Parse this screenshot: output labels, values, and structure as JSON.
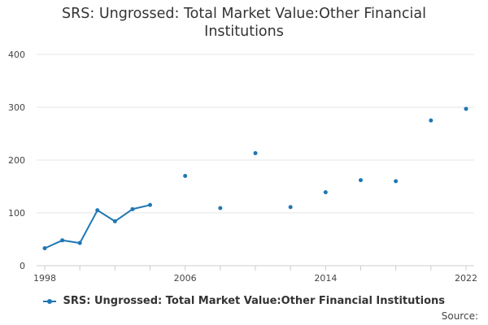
{
  "chart_data": {
    "type": "line",
    "title_lines": [
      "SRS: Ungrossed: Total Market Value:Other Financial",
      "Institutions"
    ],
    "xlabel": "",
    "ylabel": "",
    "xlim": [
      1998,
      2022
    ],
    "ylim": [
      0,
      400
    ],
    "yticks": [
      0,
      100,
      200,
      300,
      400
    ],
    "xticks": [
      1998,
      2006,
      2014,
      2022
    ],
    "grid": true,
    "legend_position": "bottom",
    "series": [
      {
        "name": "SRS: Ungrossed: Total Market Value:Other Financial Institutions",
        "color": "#1f77b4",
        "points": [
          {
            "x": 1998,
            "y": 33
          },
          {
            "x": 1999,
            "y": 48
          },
          {
            "x": 2000,
            "y": 43
          },
          {
            "x": 2001,
            "y": 105
          },
          {
            "x": 2002,
            "y": 84
          },
          {
            "x": 2003,
            "y": 107
          },
          {
            "x": 2004,
            "y": 115
          },
          {
            "x": 2006,
            "y": 170
          },
          {
            "x": 2008,
            "y": 109
          },
          {
            "x": 2010,
            "y": 213
          },
          {
            "x": 2012,
            "y": 111
          },
          {
            "x": 2014,
            "y": 139
          },
          {
            "x": 2016,
            "y": 162
          },
          {
            "x": 2018,
            "y": 160
          },
          {
            "x": 2020,
            "y": 275
          },
          {
            "x": 2022,
            "y": 297
          }
        ]
      }
    ]
  },
  "legend": {
    "label": "SRS: Ungrossed: Total Market Value:Other Financial Institutions"
  },
  "source_label": "Source:"
}
